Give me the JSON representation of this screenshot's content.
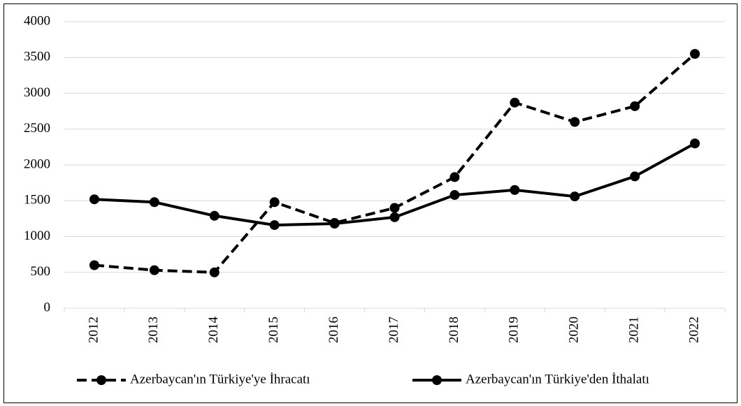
{
  "chart_data": {
    "type": "line",
    "categories": [
      "2012",
      "2013",
      "2014",
      "2015",
      "2016",
      "2017",
      "2018",
      "2019",
      "2020",
      "2021",
      "2022"
    ],
    "series": [
      {
        "name": "Azerbaycan'ın Türkiye'ye İhracatı",
        "color": "#000000",
        "dash": true,
        "values": [
          600,
          530,
          500,
          1480,
          1190,
          1400,
          1830,
          2870,
          2600,
          2820,
          3550
        ]
      },
      {
        "name": "Azerbaycan'ın Türkiye'den İthalatı",
        "color": "#000000",
        "dash": false,
        "values": [
          1520,
          1480,
          1290,
          1160,
          1180,
          1270,
          1580,
          1650,
          1560,
          1840,
          2300
        ]
      }
    ],
    "ylim": [
      0,
      4000
    ],
    "yticks": [
      0,
      500,
      1000,
      1500,
      2000,
      2500,
      3000,
      3500,
      4000
    ],
    "grid": true,
    "legend": "bottom"
  }
}
